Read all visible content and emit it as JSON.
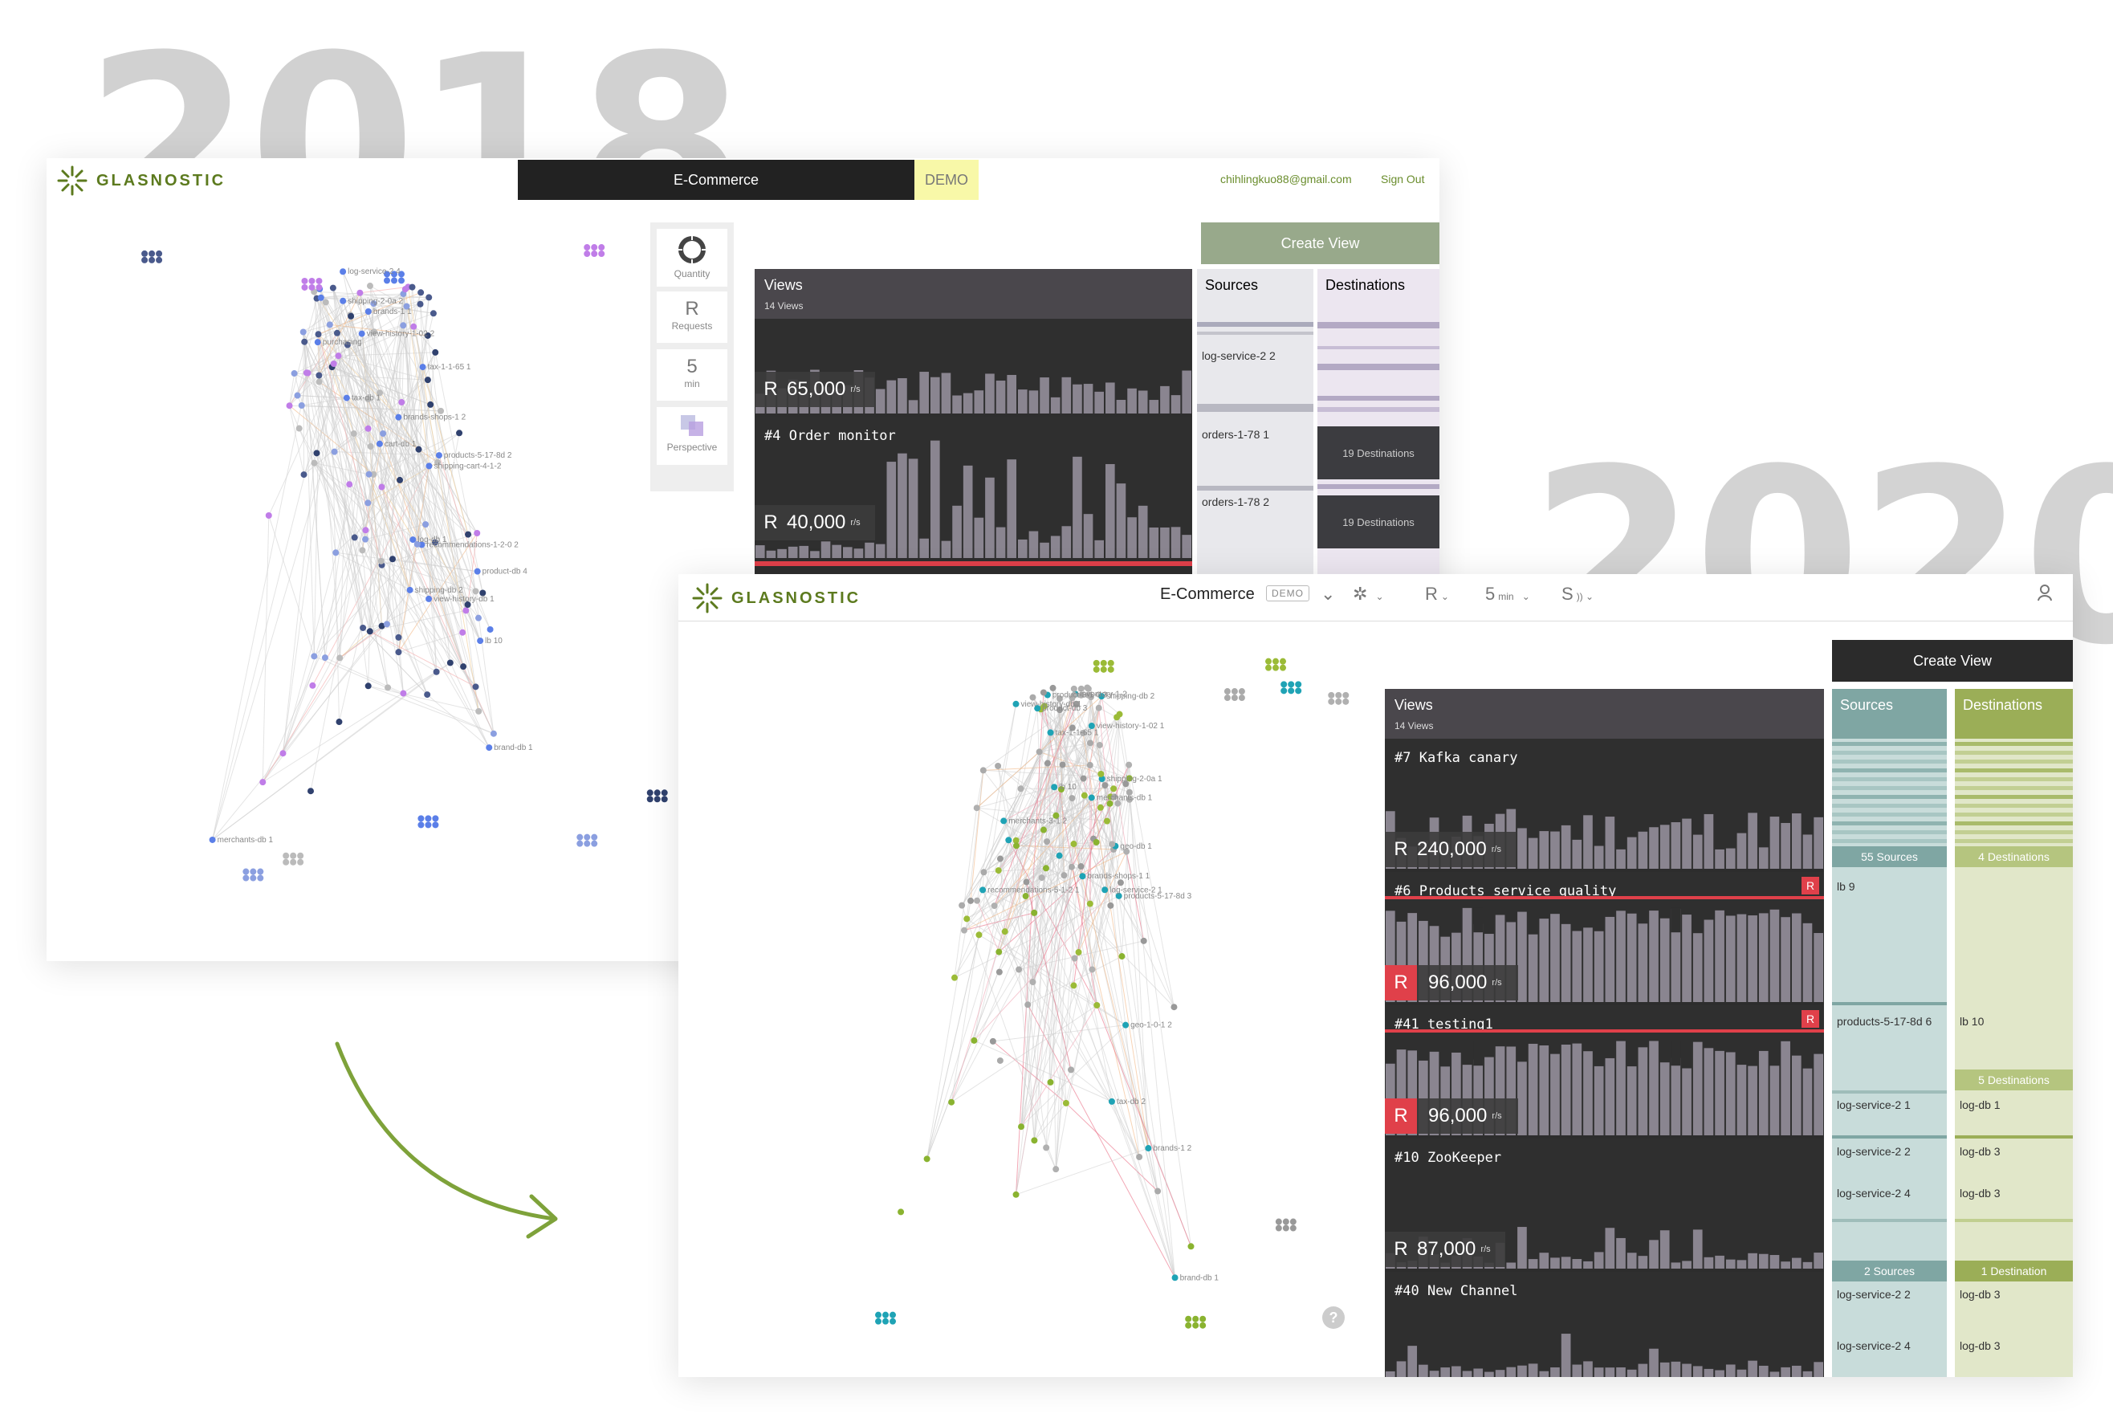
{
  "years": {
    "left": "2018",
    "right": "2020"
  },
  "win2018": {
    "brand": "GLASNOSTIC",
    "app_title": "E-Commerce",
    "demo_badge": "DEMO",
    "user_email": "chihlingkuo88@gmail.com",
    "sign_out": "Sign Out",
    "tools": [
      {
        "glyph": "",
        "label": "Quantity",
        "icon": "dial-icon"
      },
      {
        "glyph": "R",
        "label": "Requests"
      },
      {
        "glyph": "5",
        "label": "min"
      },
      {
        "glyph": "",
        "label": "Perspective",
        "icon": "perspective-icon"
      }
    ],
    "create_view": "Create View",
    "views": {
      "title": "Views",
      "count": "14 Views",
      "cards": [
        {
          "name": "",
          "metric": "R",
          "value": "65,000",
          "unit": "r/s"
        },
        {
          "name": "#4 Order monitor",
          "metric": "R",
          "value": "40,000",
          "unit": "r/s"
        }
      ]
    },
    "sources": {
      "title": "Sources",
      "items": [
        "log-service-2 2",
        "orders-1-78 1",
        "orders-1-78 2"
      ]
    },
    "destinations": {
      "title": "Destinations",
      "boxes": [
        "19 Destinations",
        "19 Destinations"
      ]
    },
    "graph_labels": [
      "log-db 1",
      "log-service-2 4",
      "recommendations-1-2-0 2",
      "purchasing",
      "view-history-1-02 2",
      "brands-shops-1 2",
      "shipping-cart-4-1-2",
      "products-5-17-8d 2",
      "tax-1-1-65 1",
      "view-history-db 1",
      "cart-db 1",
      "shipping-2-0a 2",
      "lb 10",
      "brands-1 1",
      "product-db 4",
      "tax-db 1",
      "shipping-db 2",
      "brand-db 1",
      "merchants-db 1"
    ]
  },
  "win2020": {
    "brand": "GLASNOSTIC",
    "app_title": "E-Commerce",
    "demo_badge": "DEMO",
    "toolbar": {
      "layout_icon": "cluster-icon",
      "metric": "R",
      "window": "5",
      "window_unit": "min",
      "policy": "S"
    },
    "user_icon": "user-icon",
    "create_view": "Create View",
    "views": {
      "title": "Views",
      "count": "14 Views",
      "cards": [
        {
          "name": "#7 Kafka canary",
          "metric": "R",
          "value": "240,000",
          "unit": "r/s",
          "alert": false
        },
        {
          "name": "#6 Products service quality",
          "metric": "R",
          "value": "96,000",
          "unit": "r/s",
          "alert": true,
          "tag": "R"
        },
        {
          "name": "#41 testing1",
          "metric": "R",
          "value": "96,000",
          "unit": "r/s",
          "alert": true,
          "tag": "R"
        },
        {
          "name": "#10  ZooKeeper",
          "metric": "R",
          "value": "87,000",
          "unit": "r/s",
          "alert": false
        },
        {
          "name": "#40 New Channel",
          "metric": "",
          "value": "",
          "unit": "",
          "alert": false
        }
      ]
    },
    "sources": {
      "title": "Sources",
      "summary1": "55 Sources",
      "summary2": "2 Sources",
      "items": [
        "lb 9",
        "products-5-17-8d 6",
        "log-service-2 1",
        "log-service-2 2",
        "log-service-2 4",
        "log-service-2 2",
        "log-service-2 4"
      ]
    },
    "destinations": {
      "title": "Destinations",
      "summary1": "4 Destinations",
      "summary2": "5 Destinations",
      "summary3": "1 Destination",
      "items": [
        "lb 10",
        "log-db 1",
        "log-db 3",
        "log-db 3",
        "log-db 3",
        "log-db 3"
      ]
    },
    "help": "?",
    "graph_labels": [
      "log-service-2 1",
      "recommendations-5-1-2 1",
      "product-3-1-0 3",
      "brands-shops-1 1",
      "view-history-1-02 1",
      "products-5-17-8d 3",
      "geo-1-0-1 2",
      "inventory-1-2",
      "tax-1-1-65 1",
      "view-history-db 1",
      "shipping-2-0a 1",
      "product-db 3",
      "brands-1 2",
      "merchants-3-1 2",
      "lb 10",
      "tax-db 2",
      "geo-db 1",
      "shipping-db 2",
      "brand-db 1",
      "merchants-db 1"
    ]
  },
  "colors": {
    "brand_green": "#5c7a1e",
    "alert_red": "#e0404a",
    "sources_teal": "#7fa6a3",
    "dest_green": "#9bae57"
  }
}
